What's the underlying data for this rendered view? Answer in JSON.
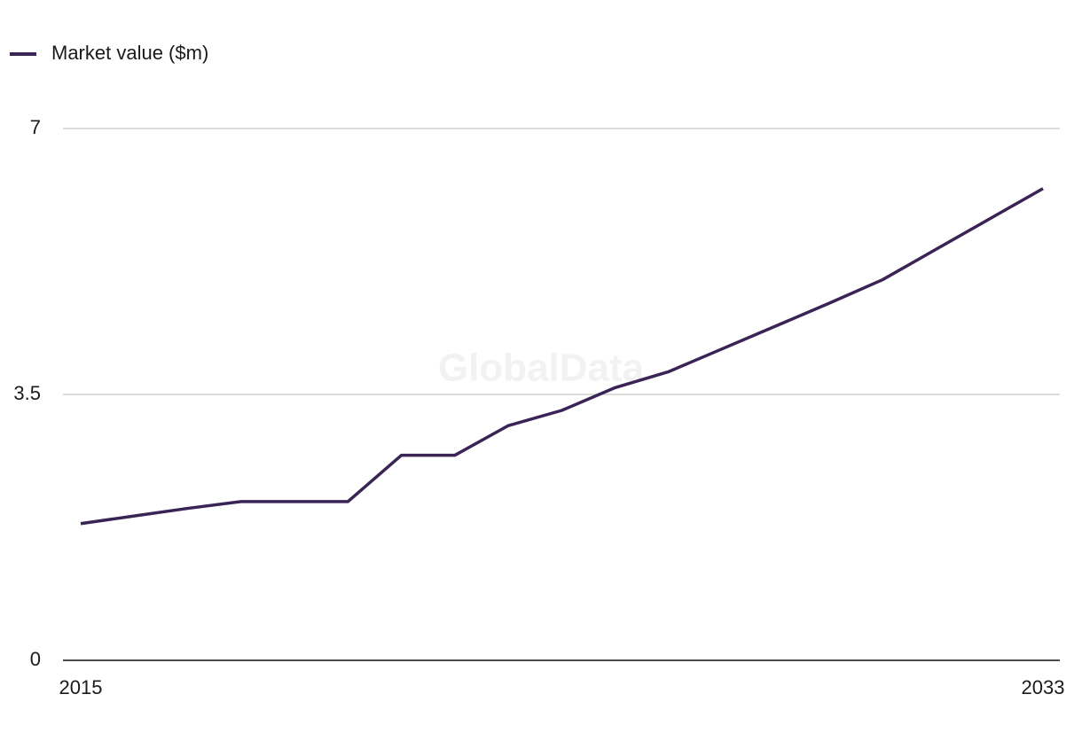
{
  "chart_data": {
    "type": "line",
    "watermark": "GlobalData",
    "x": [
      2015,
      2016,
      2017,
      2018,
      2019,
      2020,
      2021,
      2022,
      2023,
      2024,
      2025,
      2026,
      2027,
      2028,
      2029,
      2030,
      2031,
      2032,
      2033
    ],
    "series": [
      {
        "name": "Market value ($m)",
        "color": "#3a2456",
        "values": [
          1.8,
          1.9,
          2.0,
          2.09,
          2.09,
          2.09,
          2.7,
          2.7,
          3.09,
          3.29,
          3.59,
          3.8,
          4.1,
          4.4,
          4.7,
          5.01,
          5.41,
          5.81,
          6.21
        ]
      }
    ],
    "xlim": [
      2015,
      2033
    ],
    "xticks": [
      2015,
      2033
    ],
    "ylim": [
      0,
      7
    ],
    "yticks": [
      0,
      3.5,
      7
    ],
    "grid": true,
    "legend": "top-left"
  }
}
